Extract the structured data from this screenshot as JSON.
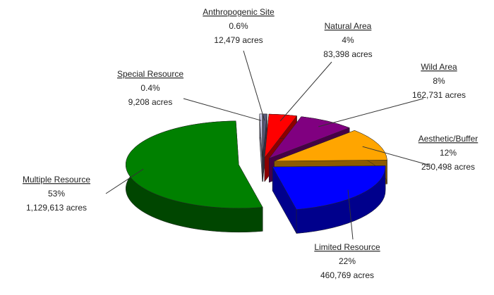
{
  "chart_data": {
    "type": "pie",
    "categories": [
      "Anthropogenic Site",
      "Natural Area",
      "Wild Area",
      "Aesthetic/Buffer",
      "Limited Resource",
      "Multiple Resource",
      "Special Resource"
    ],
    "values": [
      0.6,
      4,
      8,
      12,
      22,
      53,
      0.4
    ],
    "value_labels": [
      "0.6%",
      "4%",
      "8%",
      "12%",
      "22%",
      "53%",
      "0.4%"
    ],
    "acres": [
      "12,479 acres",
      "83,398 acres",
      "162,731 acres",
      "250,498 acres",
      "460,769 acres",
      "1,129,613 acres",
      "9,208 acres"
    ],
    "colors": [
      "#5a5a7a",
      "#ff0000",
      "#800080",
      "#ffa500",
      "#0000ff",
      "#008000",
      "#c8c8e8"
    ]
  }
}
